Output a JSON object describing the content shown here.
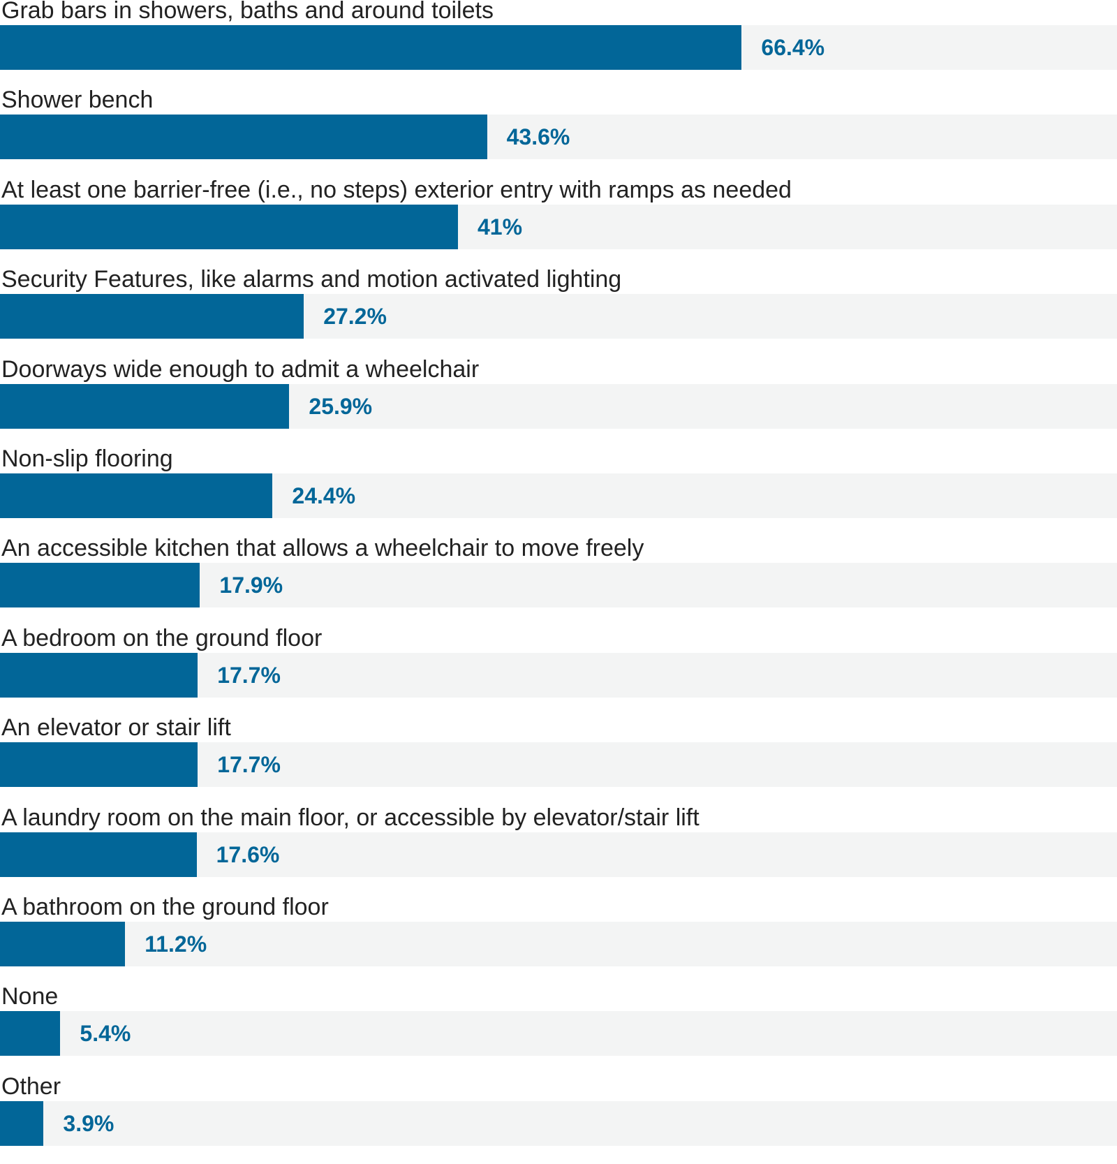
{
  "chart_data": {
    "type": "bar",
    "orientation": "horizontal",
    "categories": [
      "Grab bars in showers, baths and around toilets",
      "Shower bench",
      "At least one barrier-free (i.e., no steps) exterior entry with ramps as needed",
      "Security Features, like alarms and motion activated lighting",
      "Doorways wide enough to admit a wheelchair",
      "Non-slip flooring",
      "An accessible kitchen that allows a wheelchair to move freely",
      "A bedroom on the ground floor",
      "An elevator or stair lift",
      "A laundry room on the main floor, or accessible by elevator/stair lift",
      "A bathroom on the ground floor",
      "None",
      "Other"
    ],
    "values": [
      66.4,
      43.6,
      41,
      27.2,
      25.9,
      24.4,
      17.9,
      17.7,
      17.7,
      17.6,
      11.2,
      5.4,
      3.9
    ],
    "value_labels": [
      "66.4%",
      "43.6%",
      "41%",
      "27.2%",
      "25.9%",
      "24.4%",
      "17.9%",
      "17.7%",
      "17.7%",
      "17.6%",
      "11.2%",
      "5.4%",
      "3.9%"
    ],
    "xlim": [
      0,
      100
    ],
    "grid": false,
    "legend": "none",
    "colors": {
      "bar": "#026698",
      "track": "#f3f4f4",
      "value_label": "#026698",
      "category_label": "#222222"
    }
  }
}
